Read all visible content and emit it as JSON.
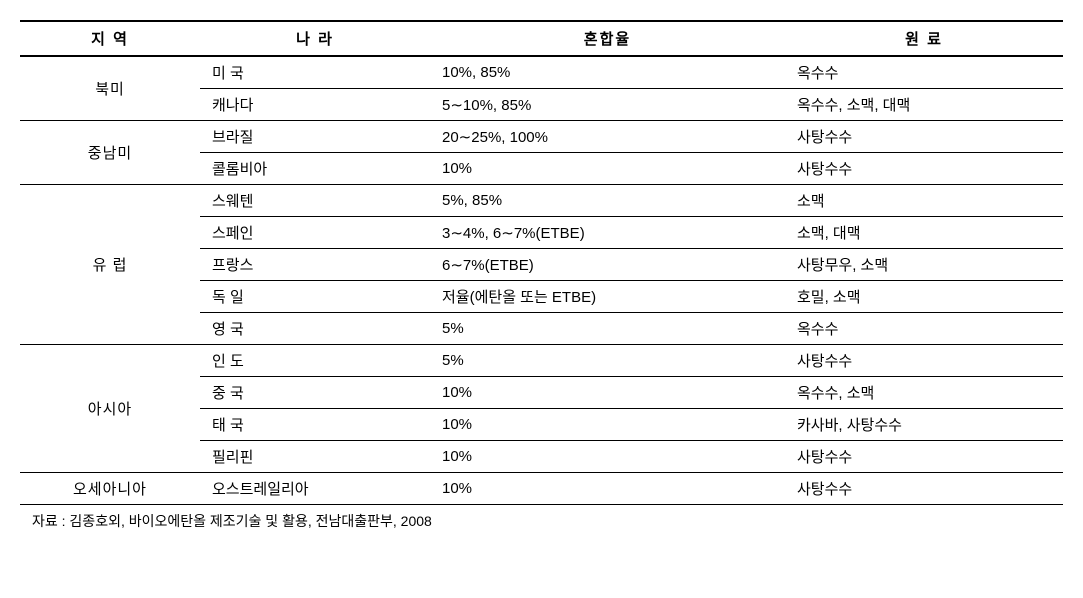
{
  "headers": {
    "region": "지 역",
    "country": "나 라",
    "blend": "혼합율",
    "material": "원 료"
  },
  "regions": [
    {
      "name": "북미",
      "rows": [
        {
          "country": "미   국",
          "blend": "10%, 85%",
          "material": "옥수수"
        },
        {
          "country": "캐나다",
          "blend": "5∼10%, 85%",
          "material": "옥수수, 소맥, 대맥"
        }
      ]
    },
    {
      "name": "중남미",
      "rows": [
        {
          "country": "브라질",
          "blend": "20∼25%, 100%",
          "material": "사탕수수"
        },
        {
          "country": "콜롬비아",
          "blend": "10%",
          "material": "사탕수수"
        }
      ]
    },
    {
      "name": "유   럽",
      "rows": [
        {
          "country": "스웨텐",
          "blend": "5%, 85%",
          "material": "소맥"
        },
        {
          "country": "스페인",
          "blend": "3∼4%, 6∼7%(ETBE)",
          "material": "소맥, 대맥"
        },
        {
          "country": "프랑스",
          "blend": "6∼7%(ETBE)",
          "material": "사탕무우, 소맥"
        },
        {
          "country": "독   일",
          "blend": "저율(에탄올 또는 ETBE)",
          "material": "호밀, 소맥"
        },
        {
          "country": "영   국",
          "blend": "5%",
          "material": "옥수수"
        }
      ]
    },
    {
      "name": "아시아",
      "rows": [
        {
          "country": "인   도",
          "blend": "5%",
          "material": "사탕수수"
        },
        {
          "country": "중   국",
          "blend": "10%",
          "material": "옥수수, 소맥"
        },
        {
          "country": "태   국",
          "blend": "10%",
          "material": "카사바, 사탕수수"
        },
        {
          "country": "필리핀",
          "blend": "10%",
          "material": "사탕수수"
        }
      ]
    },
    {
      "name": "오세아니아",
      "rows": [
        {
          "country": "오스트레일리아",
          "blend": "10%",
          "material": "사탕수수"
        }
      ]
    }
  ],
  "source": "자료 : 김종호외, 바이오에탄올 제조기술 및 활용, 전남대출판부, 2008"
}
